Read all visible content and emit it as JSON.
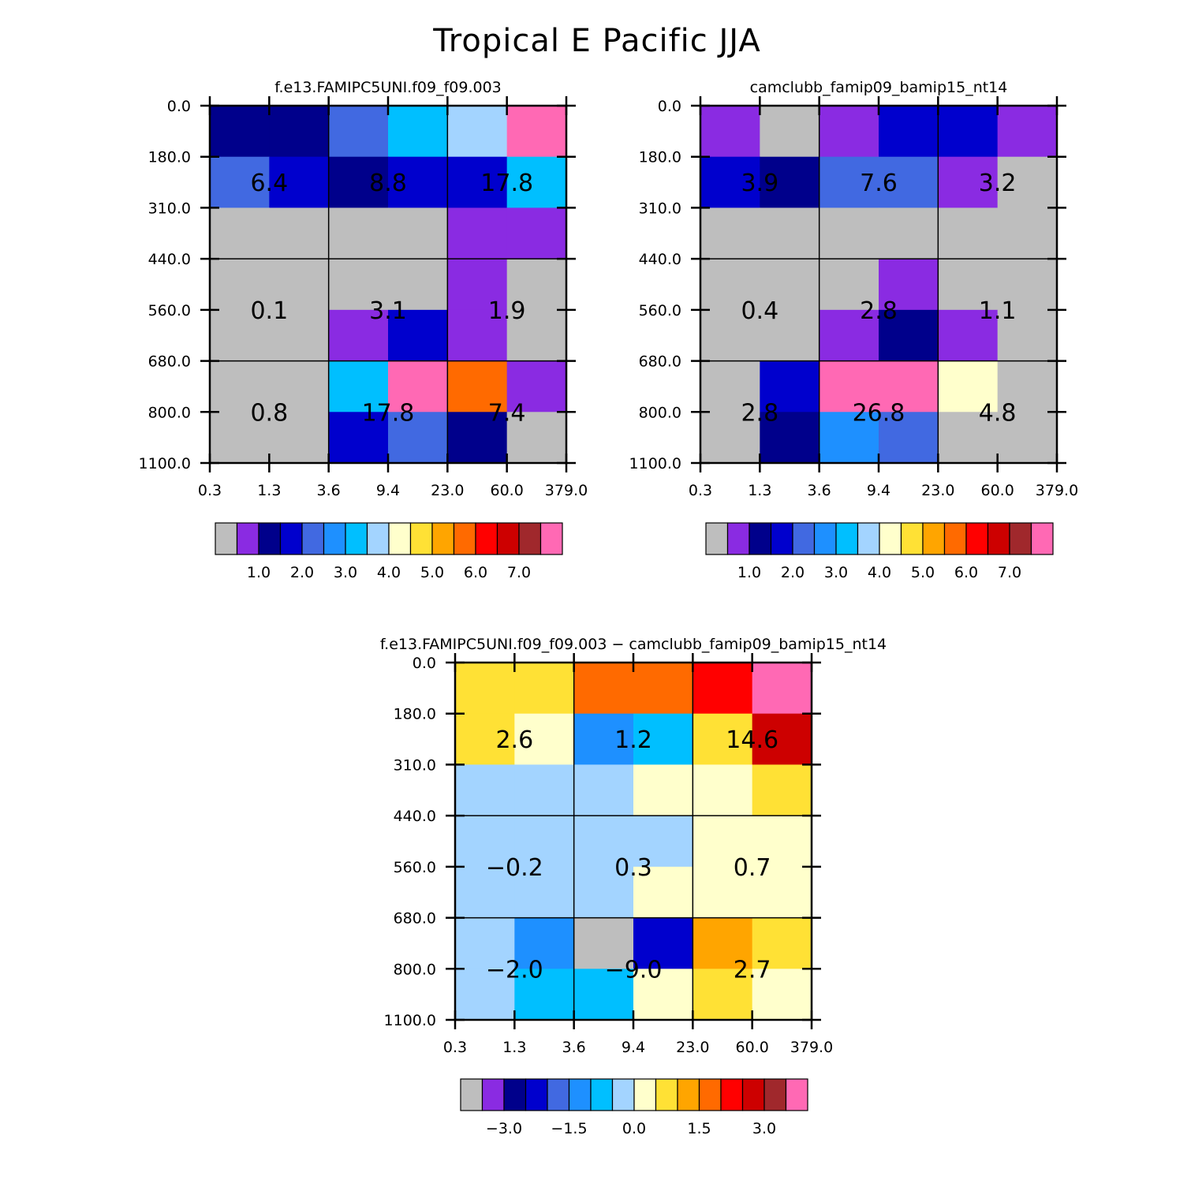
{
  "title": "Tropical E Pacific JJA",
  "palette": [
    "#BEBEBE",
    "#8A2BE2",
    "#00008B",
    "#0000CD",
    "#4169E1",
    "#1E90FF",
    "#00BFFF",
    "#A3D4FF",
    "#FFFFCC",
    "#FFE135",
    "#FFA500",
    "#FF6A00",
    "#FF0000",
    "#CD0000",
    "#A0282C",
    "#FF69B4"
  ],
  "chart_data": [
    {
      "type": "heatmap",
      "title": "f.e13.FAMIPC5UNI.f09_f09.003",
      "x_ticks": [
        "0.3",
        "1.3",
        "3.6",
        "9.4",
        "23.0",
        "60.0",
        "379.0"
      ],
      "y_ticks": [
        "0.0",
        "180.0",
        "310.0",
        "440.0",
        "560.0",
        "680.0",
        "800.0",
        "1100.0"
      ],
      "color_index_grid": [
        [
          2,
          2,
          4,
          6,
          7,
          15
        ],
        [
          4,
          3,
          2,
          3,
          3,
          6
        ],
        [
          0,
          0,
          0,
          0,
          1,
          1
        ],
        [
          0,
          0,
          0,
          0,
          1,
          0
        ],
        [
          0,
          0,
          1,
          3,
          1,
          0
        ],
        [
          0,
          0,
          6,
          15,
          11,
          1
        ],
        [
          0,
          0,
          3,
          4,
          2,
          0
        ]
      ],
      "group_values": [
        [
          "6.4",
          "8.8",
          "17.8"
        ],
        [
          "0.1",
          "3.1",
          "1.9"
        ],
        [
          "0.8",
          "17.8",
          "7.4"
        ]
      ],
      "colorbar_labels": [
        "1.0",
        "2.0",
        "3.0",
        "4.0",
        "5.0",
        "6.0",
        "7.0"
      ]
    },
    {
      "type": "heatmap",
      "title": "camclubb_famip09_bamip15_nt14",
      "x_ticks": [
        "0.3",
        "1.3",
        "3.6",
        "9.4",
        "23.0",
        "60.0",
        "379.0"
      ],
      "y_ticks": [
        "0.0",
        "180.0",
        "310.0",
        "440.0",
        "560.0",
        "680.0",
        "800.0",
        "1100.0"
      ],
      "color_index_grid": [
        [
          1,
          0,
          1,
          3,
          3,
          1
        ],
        [
          3,
          2,
          4,
          4,
          1,
          0
        ],
        [
          0,
          0,
          0,
          0,
          0,
          0
        ],
        [
          0,
          0,
          0,
          1,
          0,
          0
        ],
        [
          0,
          0,
          1,
          2,
          1,
          0
        ],
        [
          0,
          3,
          15,
          15,
          8,
          0
        ],
        [
          0,
          2,
          5,
          4,
          0,
          0
        ]
      ],
      "group_values": [
        [
          "3.9",
          "7.6",
          "3.2"
        ],
        [
          "0.4",
          "2.8",
          "1.1"
        ],
        [
          "2.8",
          "26.8",
          "4.8"
        ]
      ],
      "colorbar_labels": [
        "1.0",
        "2.0",
        "3.0",
        "4.0",
        "5.0",
        "6.0",
        "7.0"
      ]
    },
    {
      "type": "heatmap",
      "title": "f.e13.FAMIPC5UNI.f09_f09.003 − camclubb_famip09_bamip15_nt14",
      "x_ticks": [
        "0.3",
        "1.3",
        "3.6",
        "9.4",
        "23.0",
        "60.0",
        "379.0"
      ],
      "y_ticks": [
        "0.0",
        "180.0",
        "310.0",
        "440.0",
        "560.0",
        "680.0",
        "800.0",
        "1100.0"
      ],
      "color_index_grid": [
        [
          9,
          9,
          11,
          11,
          12,
          15
        ],
        [
          9,
          8,
          5,
          6,
          9,
          13
        ],
        [
          7,
          7,
          7,
          8,
          8,
          9
        ],
        [
          7,
          7,
          7,
          7,
          8,
          8
        ],
        [
          7,
          7,
          7,
          8,
          8,
          8
        ],
        [
          7,
          5,
          0,
          3,
          10,
          9
        ],
        [
          7,
          6,
          6,
          8,
          9,
          8
        ]
      ],
      "group_values": [
        [
          "2.6",
          "1.2",
          "14.6"
        ],
        [
          "−0.2",
          "0.3",
          "0.7"
        ],
        [
          "−2.0",
          "−9.0",
          "2.7"
        ]
      ],
      "colorbar_labels": [
        "−3.0",
        "−1.5",
        "0.0",
        "1.5",
        "3.0"
      ]
    }
  ]
}
